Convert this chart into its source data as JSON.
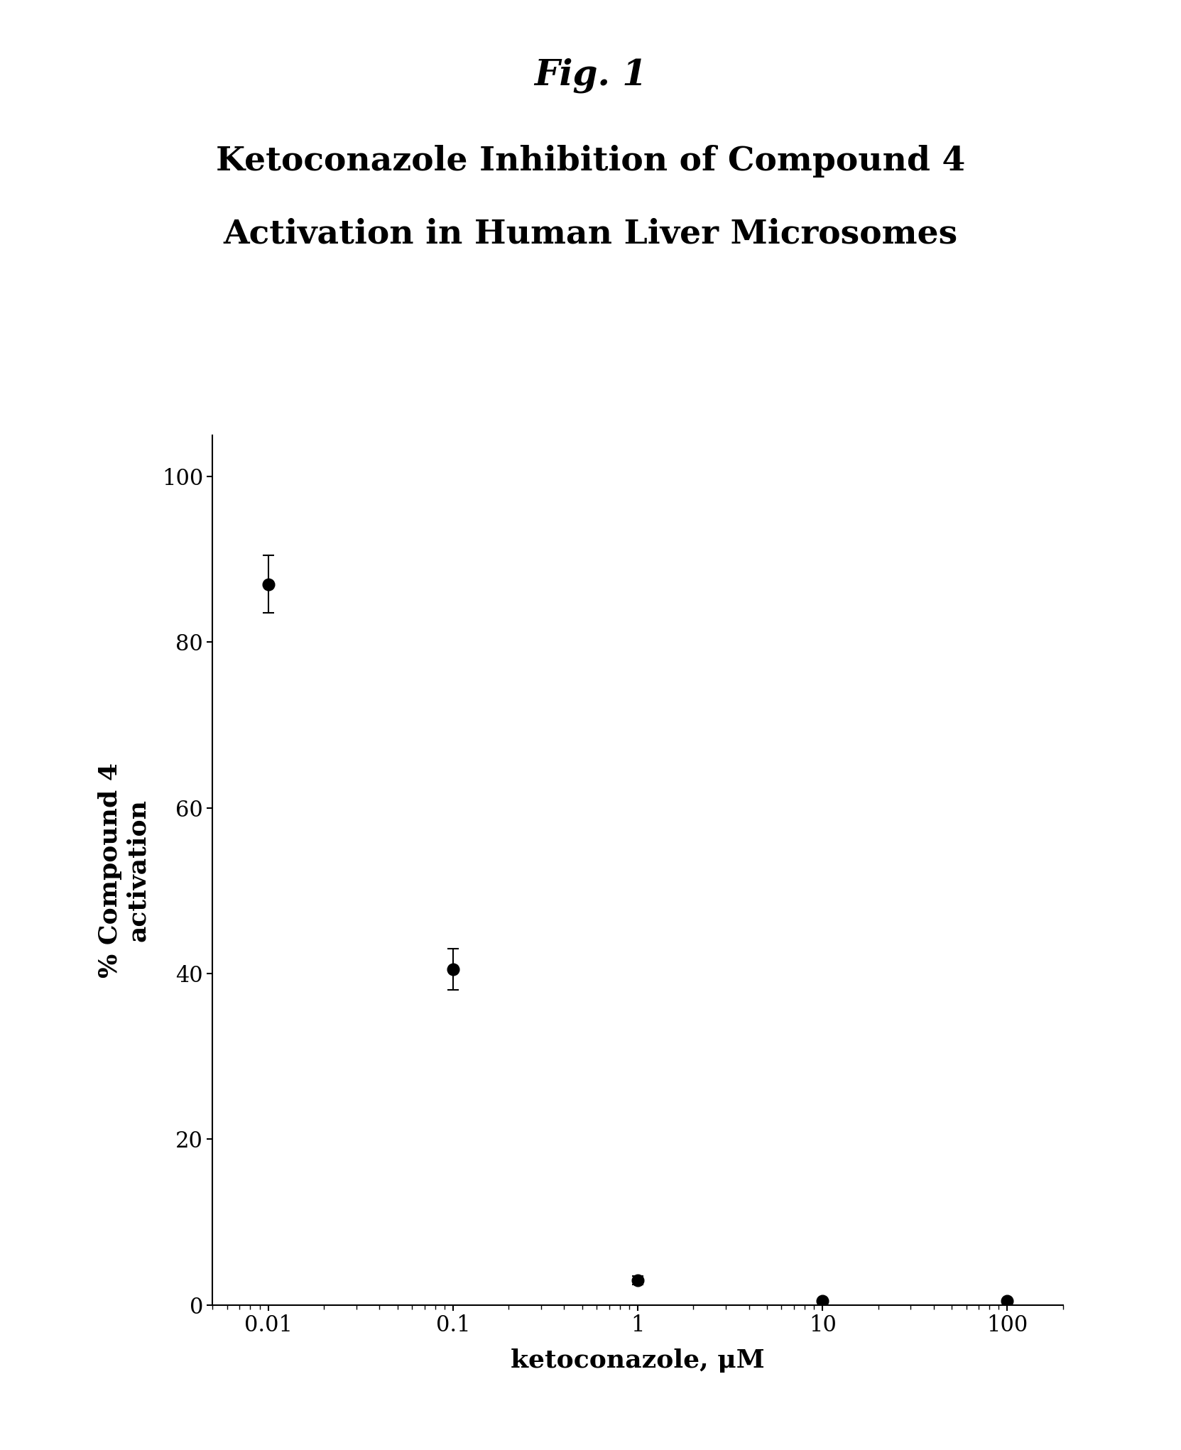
{
  "fig_title": "Fig. 1",
  "subtitle_line1": "Ketoconazole Inhibition of Compound 4",
  "subtitle_line2": "Activation in Human Liver Microsomes",
  "x_values": [
    0.01,
    0.1,
    1,
    10,
    100
  ],
  "y_values": [
    87,
    40.5,
    3,
    0.5,
    0.5
  ],
  "y_errors": [
    3.5,
    2.5,
    0.5,
    0.2,
    0.2
  ],
  "xlabel": "ketoconazole, μM",
  "ylabel": "% Compound 4\nactivation",
  "ylim": [
    0,
    105
  ],
  "yticks": [
    0,
    20,
    40,
    60,
    80,
    100
  ],
  "xlim_log": [
    -2.3,
    2.3
  ],
  "background_color": "#ffffff",
  "line_color": "#000000",
  "marker_color": "#000000",
  "marker_size": 12,
  "line_width": 1.5,
  "title_fontsize": 36,
  "subtitle_fontsize": 34,
  "axis_label_fontsize": 26,
  "tick_fontsize": 22,
  "error_cap_size": 6
}
